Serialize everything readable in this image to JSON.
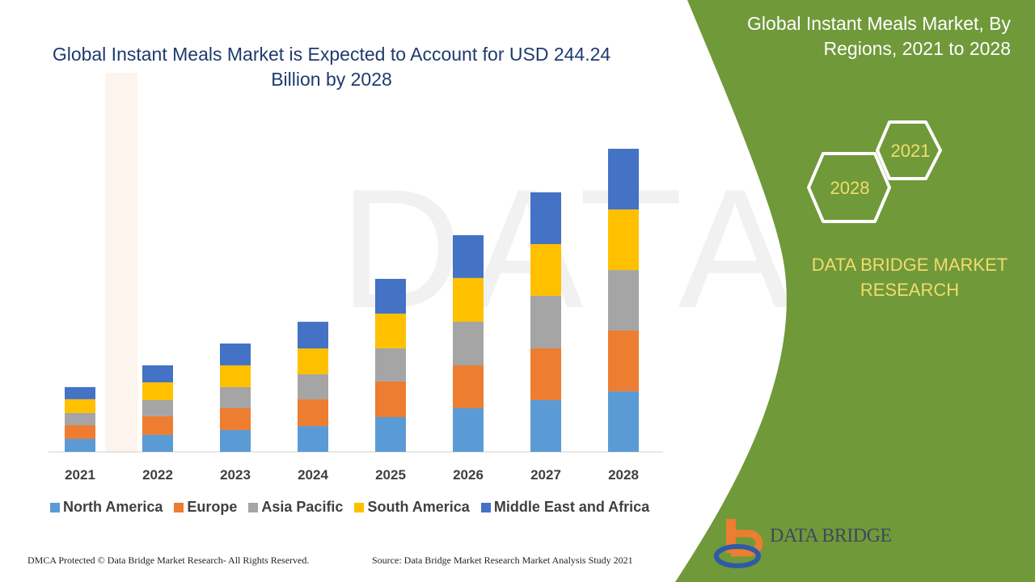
{
  "header": {
    "title": "Global Instant Meals Market is Expected to Account for USD 244.24 Billion by 2028"
  },
  "side_panel": {
    "title": "Global Instant Meals Market, By Regions, 2021 to 2028",
    "hex_years": [
      "2021",
      "2028"
    ],
    "brand": "DATA BRIDGE MARKET RESEARCH",
    "logo_text": "DATA BRIDGE",
    "color": "#70993a"
  },
  "footer": {
    "left": "DMCA Protected © Data Bridge Market Research- All Rights Reserved.",
    "right": "Source: Data Bridge Market Research Market Analysis Study 2021"
  },
  "chart_data": {
    "type": "bar",
    "stacked": true,
    "title": "Global Instant Meals Market is Expected to Account for USD 244.24 Billion by 2028",
    "xlabel": "",
    "ylabel": "",
    "categories": [
      "2021",
      "2022",
      "2023",
      "2024",
      "2025",
      "2026",
      "2027",
      "2028"
    ],
    "series": [
      {
        "name": "North America",
        "color": "#5b9bd5",
        "values": [
          10.4,
          13.7,
          17.6,
          20.8,
          28.0,
          35.2,
          41.7,
          48.8
        ]
      },
      {
        "name": "Europe",
        "color": "#ed7d31",
        "values": [
          11.1,
          15.0,
          17.6,
          21.5,
          28.7,
          34.5,
          41.7,
          48.9
        ]
      },
      {
        "name": "Asia Pacific",
        "color": "#a5a5a5",
        "values": [
          9.8,
          13.0,
          16.9,
          20.2,
          26.7,
          35.2,
          42.3,
          48.8
        ]
      },
      {
        "name": "South America",
        "color": "#ffc000",
        "values": [
          11.1,
          14.3,
          17.6,
          20.8,
          28.0,
          35.2,
          41.7,
          48.8
        ]
      },
      {
        "name": "Middle East and Africa",
        "color": "#4472c4",
        "values": [
          9.8,
          13.7,
          17.6,
          21.5,
          28.0,
          34.5,
          41.7,
          48.9
        ]
      }
    ],
    "y_axis_visible": false,
    "grid": false,
    "legend": "bottom"
  }
}
